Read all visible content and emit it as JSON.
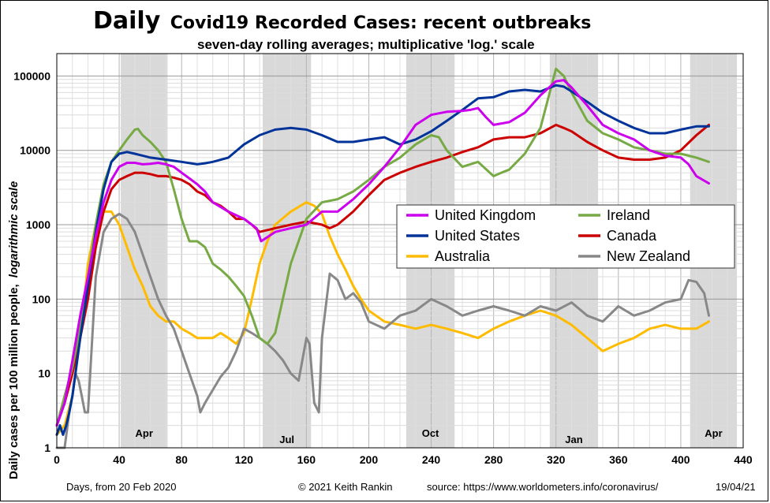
{
  "title_bold": "Daily",
  "title_rest": "Covid19 Recorded Cases: recent outbreaks",
  "subtitle": "seven-day rolling averages; multiplicative 'log.' scale",
  "footer": {
    "left": "Days, from 20 Feb 2020",
    "copyright": "© 2021  Keith Rankin",
    "source": "source:  https://www.worldometers.info/coronavirus/",
    "date": "19/04/21"
  },
  "chart_data": {
    "type": "line",
    "ylabel": "Daily cases per 100 million people,",
    "ylabel_italic": "logarithmic scale",
    "xlabel": "Days, from 20 Feb 2020",
    "yscale": "log",
    "xlim": [
      0,
      440
    ],
    "ylim": [
      1,
      200000
    ],
    "x_ticks": [
      0,
      40,
      80,
      120,
      160,
      200,
      240,
      280,
      320,
      360,
      400,
      440
    ],
    "x_tick_labels": [
      "0",
      "40",
      "80",
      "120",
      "160",
      "200",
      "240",
      "280",
      "320",
      "360",
      "400",
      "440"
    ],
    "y_ticks": [
      1,
      10,
      100,
      1000,
      10000,
      100000
    ],
    "y_tick_labels": [
      "1",
      "10",
      "100",
      "1000",
      "10000",
      "100000"
    ],
    "month_bands": [
      {
        "label": "Apr",
        "from": 41,
        "to": 71
      },
      {
        "label": "Jul",
        "from": 132,
        "to": 163
      },
      {
        "label": "Oct",
        "from": 224,
        "to": 255
      },
      {
        "label": "Jan",
        "from": 316,
        "to": 347
      },
      {
        "label": "Apr",
        "from": 406,
        "to": 436
      }
    ],
    "legend_placement": "center-right",
    "grid": true,
    "series": [
      {
        "name": "United Kingdom",
        "color": "#cc00ee",
        "x": [
          0,
          5,
          10,
          15,
          20,
          25,
          30,
          35,
          40,
          45,
          50,
          55,
          60,
          65,
          70,
          75,
          80,
          85,
          90,
          95,
          100,
          110,
          120,
          128,
          131,
          140,
          150,
          160,
          170,
          180,
          190,
          200,
          210,
          220,
          230,
          240,
          250,
          260,
          265,
          270,
          275,
          280,
          290,
          300,
          310,
          320,
          325,
          330,
          340,
          350,
          360,
          370,
          380,
          390,
          400,
          405,
          410,
          418
        ],
        "y": [
          2,
          4,
          15,
          60,
          200,
          700,
          2000,
          4000,
          6000,
          6800,
          6800,
          6500,
          6600,
          6800,
          6500,
          6000,
          5000,
          4200,
          3500,
          2800,
          2000,
          1500,
          1200,
          900,
          600,
          800,
          900,
          1000,
          1500,
          1500,
          2200,
          3500,
          6000,
          11000,
          22000,
          30000,
          33000,
          34000,
          35000,
          37000,
          28000,
          22000,
          24000,
          32000,
          55000,
          85000,
          88000,
          70000,
          40000,
          22000,
          17000,
          14000,
          10000,
          8500,
          8000,
          6500,
          4500,
          3600
        ]
      },
      {
        "name": "Ireland",
        "color": "#77aa44",
        "x": [
          0,
          5,
          10,
          15,
          20,
          25,
          30,
          35,
          40,
          45,
          50,
          52,
          55,
          60,
          65,
          70,
          75,
          80,
          85,
          90,
          95,
          100,
          105,
          110,
          115,
          120,
          125,
          130,
          135,
          140,
          150,
          160,
          170,
          180,
          190,
          200,
          210,
          220,
          230,
          240,
          245,
          250,
          260,
          270,
          280,
          285,
          290,
          300,
          310,
          320,
          325,
          330,
          340,
          350,
          360,
          370,
          380,
          390,
          400,
          410,
          418
        ],
        "y": [
          2,
          5,
          12,
          40,
          200,
          1000,
          3500,
          7000,
          10000,
          14000,
          19000,
          19500,
          16000,
          13000,
          10000,
          7000,
          3000,
          1200,
          600,
          600,
          500,
          300,
          250,
          200,
          150,
          110,
          60,
          30,
          25,
          35,
          300,
          1200,
          2000,
          2200,
          2800,
          4000,
          6000,
          8000,
          12000,
          16000,
          15000,
          10000,
          6000,
          7000,
          4500,
          5000,
          5500,
          9000,
          20000,
          125000,
          100000,
          60000,
          25000,
          17000,
          14000,
          11000,
          10000,
          9000,
          9000,
          8000,
          7000
        ]
      },
      {
        "name": "United States",
        "color": "#003399",
        "x": [
          0,
          2,
          4,
          6,
          8,
          10,
          15,
          20,
          25,
          30,
          35,
          40,
          45,
          50,
          55,
          60,
          70,
          80,
          90,
          95,
          100,
          110,
          120,
          130,
          140,
          150,
          160,
          170,
          180,
          190,
          200,
          210,
          220,
          230,
          240,
          250,
          260,
          270,
          280,
          290,
          300,
          310,
          320,
          325,
          330,
          340,
          350,
          360,
          370,
          380,
          390,
          400,
          410,
          418
        ],
        "y": [
          1.5,
          2,
          1.5,
          2,
          3,
          5,
          30,
          150,
          800,
          3000,
          7000,
          9000,
          9500,
          9000,
          8500,
          8000,
          7500,
          7000,
          6500,
          6700,
          7000,
          8000,
          12000,
          16000,
          19000,
          20000,
          19000,
          16000,
          13000,
          13000,
          14000,
          15000,
          12000,
          14000,
          18000,
          25000,
          35000,
          50000,
          52000,
          62000,
          65000,
          62000,
          75000,
          72000,
          62000,
          45000,
          32000,
          25000,
          20000,
          17000,
          17000,
          19000,
          21000,
          21000
        ]
      },
      {
        "name": "Canada",
        "color": "#cc0000",
        "x": [
          0,
          5,
          10,
          15,
          20,
          25,
          30,
          35,
          40,
          45,
          50,
          55,
          60,
          65,
          70,
          75,
          80,
          85,
          90,
          95,
          100,
          105,
          110,
          115,
          120,
          125,
          130,
          140,
          150,
          160,
          170,
          175,
          180,
          190,
          200,
          210,
          220,
          230,
          240,
          250,
          260,
          270,
          280,
          290,
          300,
          310,
          320,
          325,
          330,
          340,
          350,
          360,
          370,
          380,
          390,
          400,
          410,
          418
        ],
        "y": [
          2,
          4,
          10,
          30,
          100,
          500,
          1500,
          3000,
          4000,
          4500,
          5000,
          5000,
          4800,
          4500,
          4500,
          4300,
          4000,
          3500,
          2800,
          2500,
          2000,
          1800,
          1500,
          1200,
          1200,
          1000,
          800,
          900,
          1000,
          1100,
          1000,
          900,
          1000,
          1500,
          2500,
          4000,
          5000,
          6000,
          7000,
          8000,
          9500,
          11000,
          14000,
          15000,
          15000,
          17000,
          22000,
          20000,
          18000,
          13000,
          10000,
          8000,
          7500,
          7500,
          8000,
          10000,
          16000,
          22000
        ]
      },
      {
        "name": "Australia",
        "color": "#ffbb00",
        "x": [
          0,
          5,
          10,
          15,
          20,
          25,
          30,
          35,
          40,
          45,
          50,
          55,
          60,
          65,
          70,
          75,
          80,
          85,
          90,
          95,
          100,
          105,
          110,
          115,
          120,
          125,
          130,
          135,
          140,
          150,
          160,
          165,
          170,
          175,
          180,
          185,
          190,
          195,
          200,
          210,
          220,
          230,
          240,
          250,
          260,
          270,
          280,
          290,
          300,
          310,
          320,
          330,
          340,
          350,
          360,
          370,
          380,
          390,
          400,
          410,
          418
        ],
        "y": [
          1.5,
          2,
          5,
          30,
          300,
          1000,
          1500,
          1500,
          1000,
          500,
          250,
          150,
          80,
          60,
          50,
          50,
          40,
          35,
          30,
          30,
          30,
          35,
          30,
          25,
          35,
          100,
          300,
          600,
          1000,
          1500,
          2000,
          1800,
          1400,
          700,
          400,
          250,
          150,
          100,
          70,
          50,
          45,
          40,
          45,
          40,
          35,
          30,
          40,
          50,
          60,
          70,
          60,
          45,
          30,
          20,
          25,
          30,
          40,
          45,
          40,
          40,
          50
        ]
      },
      {
        "name": "New Zealand",
        "color": "#888888",
        "x": [
          0,
          5,
          8,
          10,
          12,
          14,
          16,
          18,
          20,
          25,
          30,
          35,
          40,
          45,
          50,
          55,
          60,
          65,
          70,
          75,
          80,
          85,
          90,
          92,
          95,
          100,
          105,
          110,
          115,
          118,
          120,
          125,
          130,
          135,
          140,
          145,
          150,
          155,
          160,
          162,
          165,
          168,
          170,
          175,
          180,
          185,
          190,
          195,
          200,
          210,
          220,
          230,
          240,
          250,
          260,
          270,
          280,
          290,
          300,
          310,
          320,
          330,
          340,
          350,
          360,
          370,
          380,
          390,
          400,
          405,
          410,
          415,
          418
        ],
        "y": [
          1,
          1,
          3,
          5,
          10,
          8,
          5,
          3,
          3,
          200,
          800,
          1200,
          1400,
          1200,
          800,
          400,
          200,
          100,
          60,
          40,
          20,
          10,
          5,
          3,
          4,
          6,
          9,
          12,
          20,
          30,
          40,
          35,
          30,
          25,
          20,
          15,
          10,
          8,
          30,
          25,
          4,
          3,
          30,
          220,
          180,
          100,
          120,
          90,
          50,
          40,
          60,
          70,
          100,
          80,
          60,
          70,
          80,
          70,
          60,
          80,
          70,
          90,
          60,
          50,
          80,
          60,
          70,
          90,
          100,
          180,
          170,
          120,
          60
        ]
      }
    ]
  }
}
